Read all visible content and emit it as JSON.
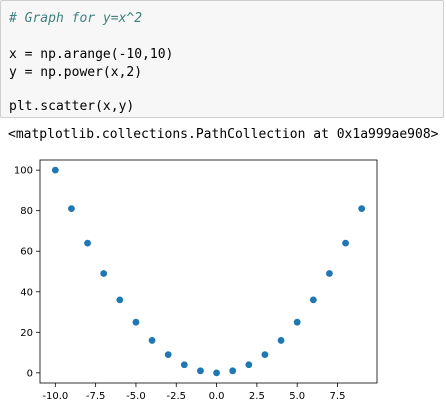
{
  "code_cell": {
    "lines": [
      "# Graph for y=x^2",
      "",
      "x = np.arange(-10,10)",
      "y = np.power(x,2)",
      "",
      "plt.scatter(x,y)"
    ]
  },
  "output": {
    "text": "<matplotlib.collections.PathCollection at 0x1a999ae908>"
  },
  "chart_data": {
    "type": "scatter",
    "x": [
      -10,
      -9,
      -8,
      -7,
      -6,
      -5,
      -4,
      -3,
      -2,
      -1,
      0,
      1,
      2,
      3,
      4,
      5,
      6,
      7,
      8,
      9
    ],
    "y": [
      100,
      81,
      64,
      49,
      36,
      25,
      16,
      9,
      4,
      1,
      0,
      1,
      4,
      9,
      16,
      25,
      36,
      49,
      64,
      81
    ],
    "xlim": [
      -10.95,
      9.95
    ],
    "ylim": [
      -5,
      105
    ],
    "xticks": [
      -10,
      -7.5,
      -5,
      -2.5,
      0,
      2.5,
      5,
      7.5
    ],
    "xtick_labels": [
      "-10.0",
      "-7.5",
      "-5.0",
      "-2.5",
      "0.0",
      "2.5",
      "5.0",
      "7.5"
    ],
    "yticks": [
      0,
      20,
      40,
      60,
      80,
      100
    ],
    "ytick_labels": [
      "0",
      "20",
      "40",
      "60",
      "80",
      "100"
    ],
    "marker_color": "#1f77b4",
    "grid": false,
    "title": "",
    "xlabel": "",
    "ylabel": ""
  }
}
